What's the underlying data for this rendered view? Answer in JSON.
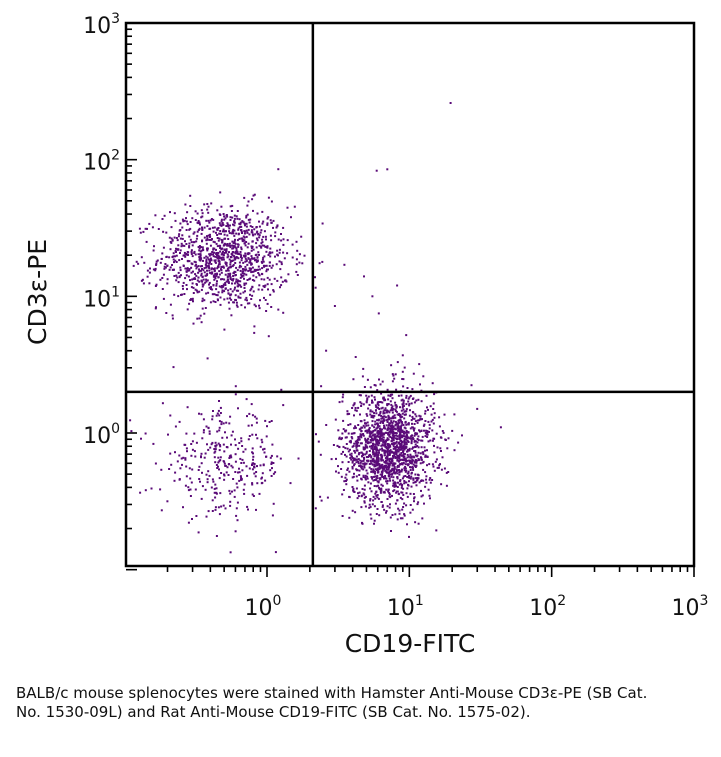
{
  "chart_data": {
    "type": "scatter",
    "title": "",
    "xlabel": "CD19-FITC",
    "ylabel": "CD3ε-PE",
    "x_scale": "log",
    "y_scale": "log",
    "xlim": [
      0.12,
      1000
    ],
    "ylim": [
      0.1,
      1000
    ],
    "x_ticks": [
      {
        "base": "10",
        "exp": "0"
      },
      {
        "base": "10",
        "exp": "1"
      },
      {
        "base": "10",
        "exp": "2"
      },
      {
        "base": "10",
        "exp": "3"
      }
    ],
    "y_ticks": [
      {
        "base": "10",
        "exp": "0"
      },
      {
        "base": "10",
        "exp": "1"
      },
      {
        "base": "10",
        "exp": "2"
      },
      {
        "base": "10",
        "exp": "3"
      }
    ],
    "quadrant_gate": {
      "x": 2.1,
      "y": 2.0
    },
    "point_color": "#5a0a78",
    "populations": [
      {
        "cx": 0.5,
        "cy": 19,
        "sx": 0.23,
        "sy": 0.19,
        "n": 1150
      },
      {
        "cx": 7.2,
        "cy": 0.78,
        "sx": 0.16,
        "sy": 0.21,
        "n": 1650
      },
      {
        "cx": 0.5,
        "cy": 0.6,
        "sx": 0.22,
        "sy": 0.19,
        "n": 330
      }
    ],
    "outliers": [
      [
        19.5,
        260
      ],
      [
        5.9,
        83
      ],
      [
        7.0,
        85
      ],
      [
        3.5,
        17
      ],
      [
        4.8,
        14
      ],
      [
        5.5,
        10
      ],
      [
        6.1,
        7.5
      ],
      [
        8.2,
        12
      ],
      [
        3.0,
        8.5
      ],
      [
        1.2,
        8.0
      ],
      [
        9.5,
        5.2
      ],
      [
        9.0,
        3.7
      ],
      [
        8.3,
        3.3
      ],
      [
        2.6,
        4.0
      ],
      [
        4.2,
        3.6
      ],
      [
        2.4,
        2.2
      ],
      [
        30,
        1.5
      ],
      [
        44,
        1.1
      ],
      [
        1.3,
        1.6
      ]
    ]
  },
  "caption": "BALB/c mouse splenocytes were stained with Hamster Anti-Mouse CD3ε-PE (SB Cat. No. 1530-09L) and Rat Anti-Mouse CD19-FITC (SB Cat. No. 1575-02)."
}
